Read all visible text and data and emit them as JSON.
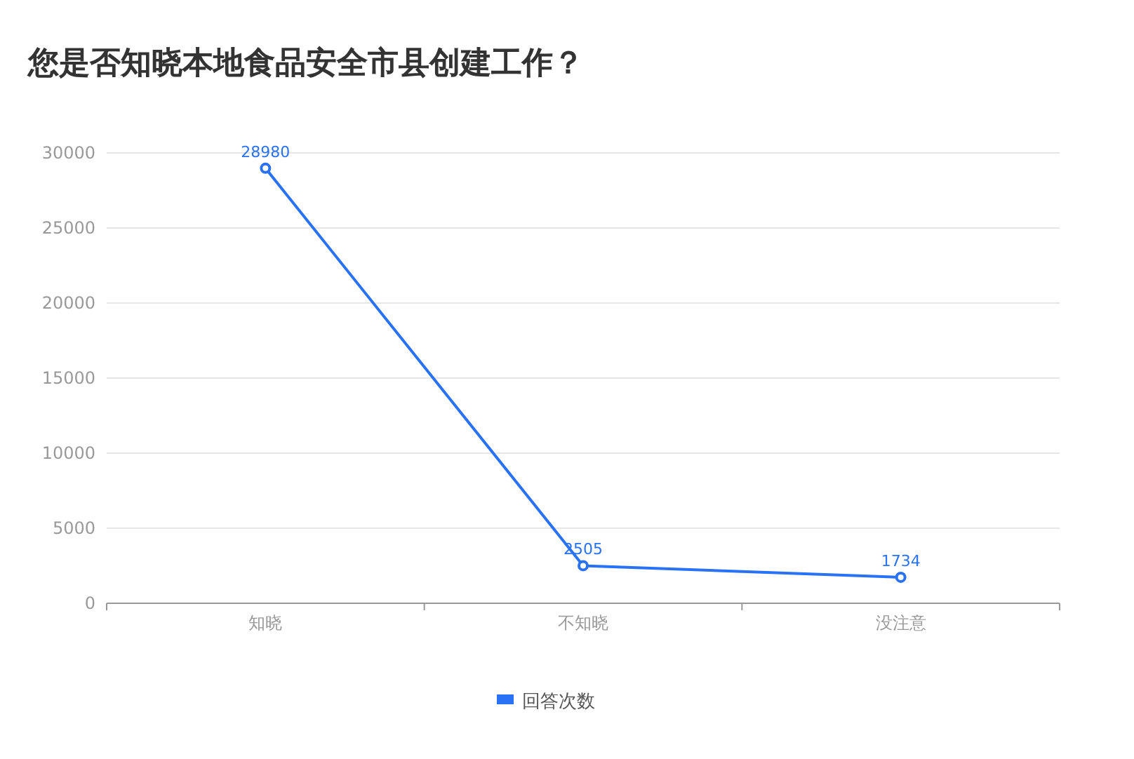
{
  "chart_data": {
    "type": "line",
    "title": "您是否知晓本地食品安全市县创建工作？",
    "categories": [
      "知晓",
      "不知晓",
      "没注意"
    ],
    "series": [
      {
        "name": "回答次数",
        "color": "#2a72f5",
        "values": [
          28980,
          2505,
          1734
        ]
      }
    ],
    "ylim": [
      0,
      30000
    ],
    "yticks": [
      0,
      5000,
      10000,
      15000,
      20000,
      25000,
      30000
    ],
    "grid": "y",
    "legend": "bottom",
    "marker": "circle",
    "data_labels": true
  }
}
